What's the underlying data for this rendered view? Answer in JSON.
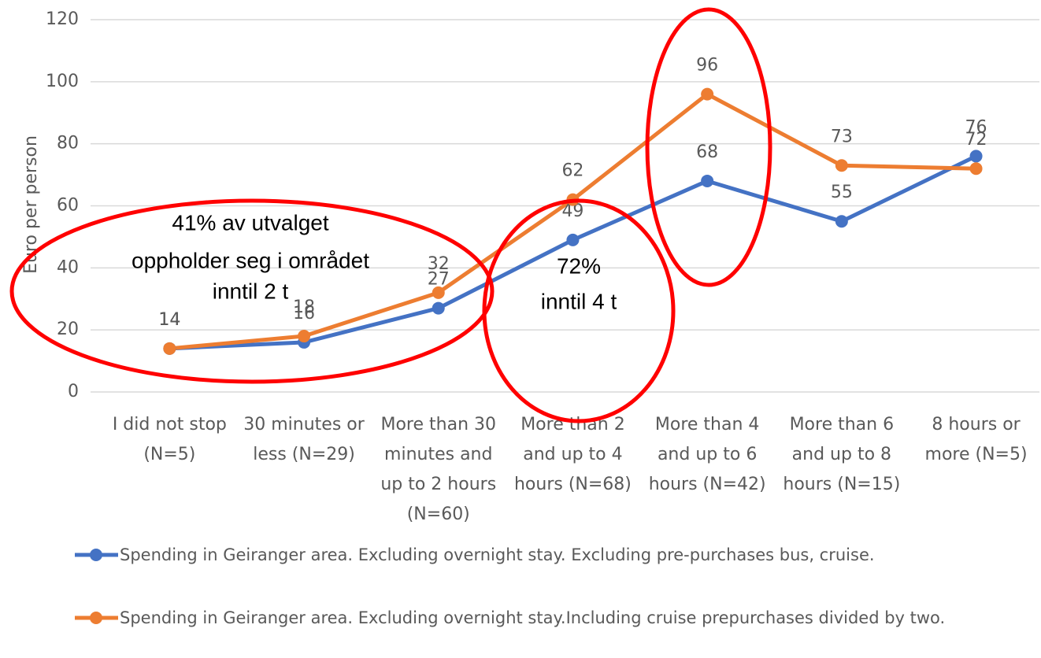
{
  "chart_data": {
    "type": "line",
    "ylabel": "Euro per person",
    "categories": [
      [
        "I did not stop",
        "(N=5)"
      ],
      [
        "30 minutes or",
        "less (N=29)"
      ],
      [
        "More than 30",
        "minutes and",
        "up to 2 hours",
        "(N=60)"
      ],
      [
        "More than 2",
        "and up to 4",
        "hours (N=68)"
      ],
      [
        "More than 4",
        "and up to 6",
        "hours (N=42)"
      ],
      [
        "More than 6",
        "and up to 8",
        "hours (N=15)"
      ],
      [
        "8 hours or",
        "more (N=5)"
      ]
    ],
    "series": [
      {
        "name": "Spending in Geiranger area. Excluding overnight stay. Excluding pre-purchases bus, cruise.",
        "color": "#4472c4",
        "values": [
          14,
          16,
          27,
          49,
          68,
          55,
          76
        ]
      },
      {
        "name": "Spending in Geiranger area. Excluding overnight stay.Including cruise prepurchases divided by two.",
        "color": "#ed7d31",
        "values": [
          14,
          18,
          32,
          62,
          96,
          73,
          72
        ]
      }
    ],
    "ylim": [
      0,
      120
    ],
    "yticks": [
      0,
      20,
      40,
      60,
      80,
      100,
      120
    ],
    "grid": true,
    "annotations": [
      [
        "41% av utvalget",
        "oppholder seg i området",
        "inntil 2 t"
      ],
      [
        "72%",
        "inntil 4 t"
      ]
    ]
  }
}
